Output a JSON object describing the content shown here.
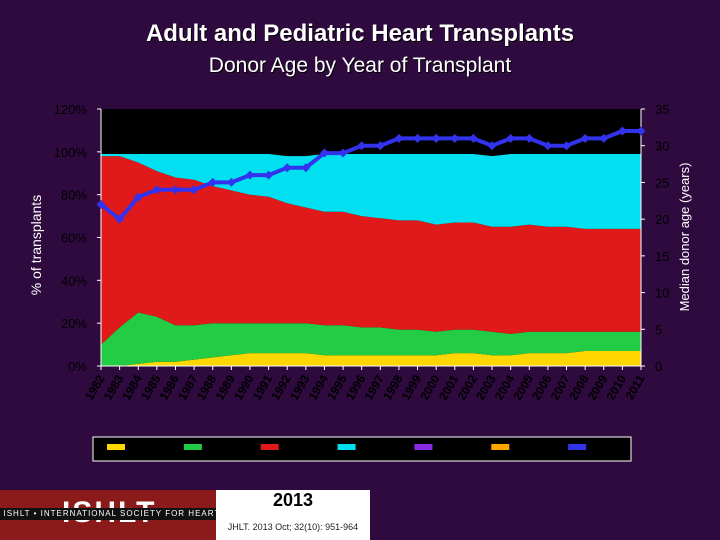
{
  "title": "Adult and Pediatric Heart Transplants",
  "subtitle": "Donor Age by Year of Transplant",
  "footer": {
    "logo_text": "ISHLT",
    "org_name": "ISHLT • INTERNATIONAL SOCIETY FOR HEART AND LUNG TRANSPLANTATION",
    "year": "2013",
    "citation": "JHLT. 2013 Oct; 32(10): 951-964"
  },
  "chart_data": {
    "type": "area",
    "title": "Donor Age by Year of Transplant",
    "ylabel": "% of transplants",
    "y2label": "Median donor age (years)",
    "ylim": [
      0,
      120
    ],
    "y2lim": [
      0,
      35
    ],
    "y_ticks": [
      "0%",
      "20%",
      "40%",
      "60%",
      "80%",
      "100%",
      "120%"
    ],
    "y2_ticks": [
      "0",
      "5",
      "10",
      "15",
      "20",
      "25",
      "30",
      "35"
    ],
    "categories": [
      "1982",
      "1983",
      "1984",
      "1985",
      "1986",
      "1987",
      "1988",
      "1989",
      "1990",
      "1991",
      "1992",
      "1993",
      "1994",
      "1995",
      "1996",
      "1997",
      "1998",
      "1999",
      "2000",
      "2001",
      "2002",
      "2003",
      "2004",
      "2005",
      "2006",
      "2007",
      "2008",
      "2009",
      "2010",
      "2011"
    ],
    "series": [
      {
        "name": "",
        "color": "#ffd700",
        "values": [
          0,
          0,
          1,
          2,
          2,
          3,
          4,
          5,
          6,
          6,
          6,
          6,
          5,
          5,
          5,
          5,
          5,
          5,
          5,
          6,
          6,
          5,
          5,
          6,
          6,
          6,
          7,
          7,
          7,
          7
        ]
      },
      {
        "name": "",
        "color": "#22cc44",
        "values": [
          10,
          18,
          24,
          21,
          17,
          16,
          16,
          15,
          14,
          14,
          14,
          14,
          14,
          14,
          13,
          13,
          12,
          12,
          11,
          11,
          11,
          11,
          10,
          10,
          10,
          10,
          9,
          9,
          9,
          9
        ]
      },
      {
        "name": "",
        "color": "#e01a1a",
        "values": [
          88,
          80,
          70,
          68,
          69,
          68,
          64,
          62,
          60,
          59,
          56,
          54,
          53,
          53,
          52,
          51,
          51,
          51,
          50,
          50,
          50,
          49,
          50,
          50,
          49,
          49,
          48,
          48,
          48,
          48
        ]
      },
      {
        "name": "",
        "color": "#00e0f0",
        "values": [
          1,
          1,
          4,
          8,
          11,
          12,
          15,
          17,
          19,
          20,
          22,
          24,
          27,
          27,
          29,
          30,
          31,
          31,
          33,
          32,
          32,
          33,
          34,
          33,
          34,
          34,
          35,
          35,
          35,
          35
        ]
      },
      {
        "name": "",
        "color": "#8a2be2",
        "values": [
          0,
          0,
          0,
          0,
          0,
          0,
          0,
          0,
          0,
          0,
          0,
          0,
          0,
          0,
          0,
          0,
          0,
          0,
          0,
          0,
          0,
          0,
          0,
          0,
          0,
          0,
          0,
          0,
          0,
          0
        ]
      },
      {
        "name": "",
        "color": "#ffa500",
        "values": [
          0,
          0,
          0,
          0,
          0,
          0,
          0,
          0,
          0,
          0,
          0,
          0,
          0,
          0,
          0,
          0,
          0,
          0,
          0,
          0,
          0,
          0,
          0,
          0,
          0,
          0,
          0,
          0,
          0,
          0
        ]
      }
    ],
    "median_age": {
      "name": "",
      "color": "#3333ee",
      "values": [
        22,
        20,
        23,
        24,
        24,
        24,
        25,
        25,
        26,
        26,
        27,
        27,
        29,
        29,
        30,
        30,
        31,
        31,
        31,
        31,
        31,
        30,
        31,
        31,
        30,
        30,
        31,
        31,
        32,
        32
      ]
    },
    "legend": [
      {
        "label": "",
        "color": "#ffd700"
      },
      {
        "label": "",
        "color": "#22cc44"
      },
      {
        "label": "",
        "color": "#e01a1a"
      },
      {
        "label": "",
        "color": "#00e0f0"
      },
      {
        "label": "",
        "color": "#8a2be2"
      },
      {
        "label": "",
        "color": "#ffa500"
      },
      {
        "label": "",
        "color": "#3333ee"
      }
    ]
  }
}
